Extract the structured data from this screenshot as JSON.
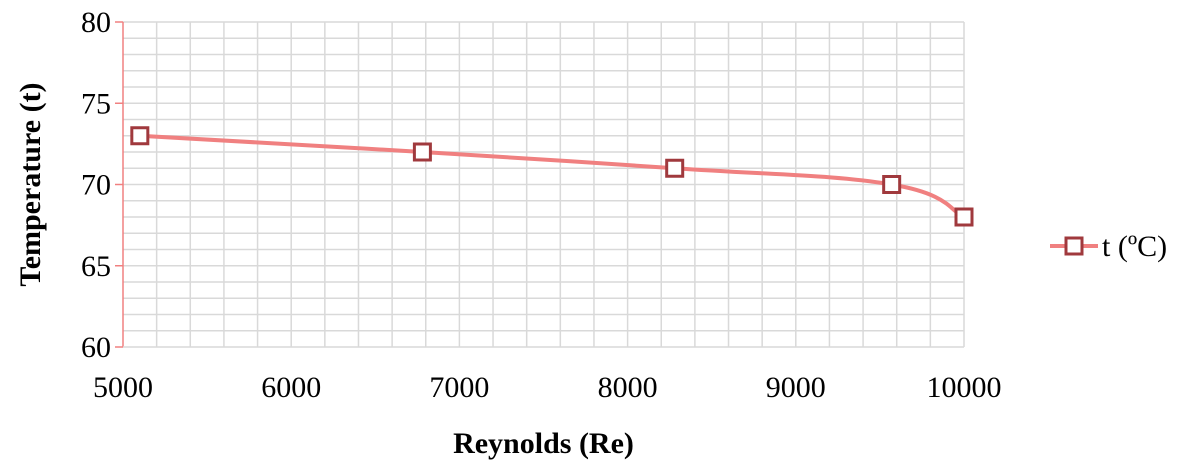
{
  "chart_data": {
    "type": "line",
    "title": "",
    "xlabel": "Reynolds (Re)",
    "ylabel": "Temperature (t)",
    "xlim": [
      5000,
      10000
    ],
    "ylim": [
      60,
      80
    ],
    "x_ticks": [
      "5000",
      "6000",
      "7000",
      "8000",
      "9000",
      "10000"
    ],
    "y_ticks": [
      "60",
      "65",
      "70",
      "75",
      "80"
    ],
    "grid": true,
    "legend_position": "right",
    "series": [
      {
        "name": "t (ºC)",
        "color": "#f08080",
        "marker_edge_color": "#a0393d",
        "marker": "square",
        "x": [
          5100,
          6780,
          8280,
          9570,
          10000
        ],
        "y": [
          73,
          72,
          71,
          70,
          68
        ]
      }
    ]
  }
}
